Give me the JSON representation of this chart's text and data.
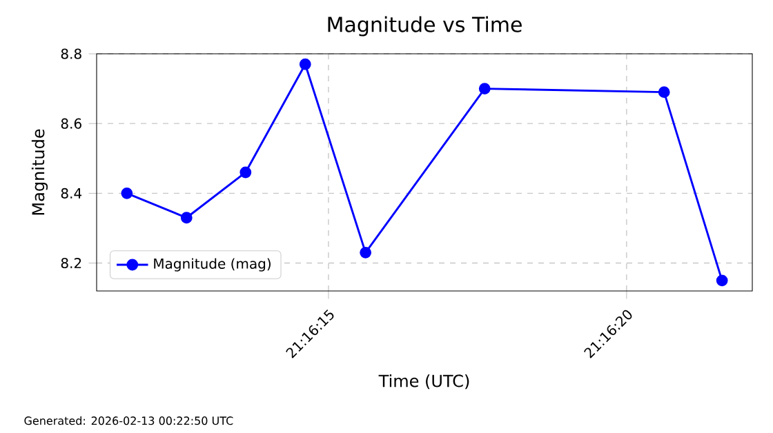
{
  "chart_data": {
    "type": "line",
    "title": "Magnitude vs Time",
    "xlabel": "Time (UTC)",
    "ylabel": "Magnitude",
    "x": [
      21.269894,
      21.270172,
      21.270447,
      21.270725,
      21.271006,
      21.271561,
      21.272397,
      21.272667
    ],
    "series": [
      {
        "name": "Magnitude (mag)",
        "color": "#0000ff",
        "values": [
          8.4,
          8.33,
          8.46,
          8.77,
          8.23,
          8.7,
          8.69,
          8.15
        ]
      }
    ],
    "xlim": [
      21.269753,
      21.272808
    ],
    "ylim": [
      8.12,
      8.8
    ],
    "xticks": [
      {
        "value": 21.2708333,
        "label": "21:16:15"
      },
      {
        "value": 21.2722222,
        "label": "21:16:20"
      }
    ],
    "yticks": [
      8.2,
      8.4,
      8.6,
      8.8
    ],
    "grid": true,
    "legend": "bottom left",
    "marker": "circle",
    "line_style": "solid",
    "annotations": [
      "Generated: 2026-02-13 00:22:50 UTC"
    ]
  }
}
